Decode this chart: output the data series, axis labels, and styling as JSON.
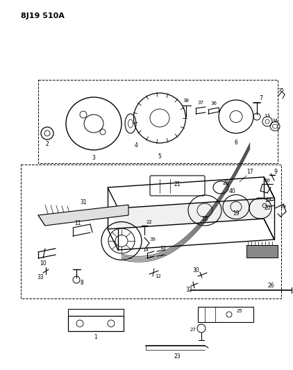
{
  "title": "8J19 510A",
  "bg_color": "#ffffff",
  "fig_w": 4.22,
  "fig_h": 5.33,
  "dpi": 100
}
